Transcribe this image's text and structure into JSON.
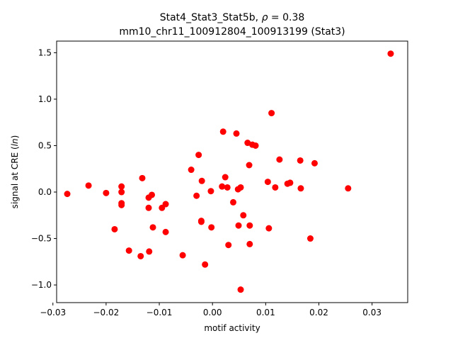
{
  "chart_data": {
    "type": "scatter",
    "title_line1": "Stat4_Stat3_Stat5b, ",
    "title_rho_symbol": "ρ",
    "title_rho_value": " = 0.38",
    "title_line2": "mm10_chr11_100912804_100913199 (Stat3)",
    "xlabel": "motif activity",
    "ylabel_prefix": "signal at CRE (",
    "ylabel_italic": "ln",
    "ylabel_suffix": ")",
    "xlim": [
      -0.0293,
      0.0367
    ],
    "ylim": [
      -1.19,
      1.625
    ],
    "xticks": [
      -0.03,
      -0.02,
      -0.01,
      0.0,
      0.01,
      0.02,
      0.03
    ],
    "xtick_labels": [
      "−0.03",
      "−0.02",
      "−0.01",
      "0.00",
      "0.01",
      "0.02",
      "0.03"
    ],
    "yticks": [
      -1.0,
      -0.5,
      0.0,
      0.5,
      1.0,
      1.5
    ],
    "ytick_labels": [
      "−1.0",
      "−0.5",
      "0.0",
      "0.5",
      "1.0",
      "1.5"
    ],
    "marker_color": "#ff0000",
    "grid": false,
    "points": [
      {
        "x": -0.0273,
        "y": -0.02
      },
      {
        "x": -0.0233,
        "y": 0.07
      },
      {
        "x": -0.02,
        "y": -0.01
      },
      {
        "x": -0.0184,
        "y": -0.4
      },
      {
        "x": -0.0171,
        "y": 0.06
      },
      {
        "x": -0.0171,
        "y": -0.12
      },
      {
        "x": -0.0171,
        "y": -0.14
      },
      {
        "x": -0.0171,
        "y": 0.0
      },
      {
        "x": -0.0157,
        "y": -0.63
      },
      {
        "x": -0.0135,
        "y": -0.69
      },
      {
        "x": -0.0132,
        "y": 0.15
      },
      {
        "x": -0.012,
        "y": -0.06
      },
      {
        "x": -0.012,
        "y": -0.17
      },
      {
        "x": -0.0119,
        "y": -0.64
      },
      {
        "x": -0.0114,
        "y": -0.03
      },
      {
        "x": -0.0112,
        "y": -0.38
      },
      {
        "x": -0.0095,
        "y": -0.17
      },
      {
        "x": -0.0088,
        "y": -0.13
      },
      {
        "x": -0.0088,
        "y": -0.43
      },
      {
        "x": -0.0056,
        "y": -0.68
      },
      {
        "x": -0.004,
        "y": 0.24
      },
      {
        "x": -0.003,
        "y": -0.04
      },
      {
        "x": -0.0026,
        "y": 0.4
      },
      {
        "x": -0.0021,
        "y": -0.32
      },
      {
        "x": -0.0021,
        "y": -0.31
      },
      {
        "x": -0.002,
        "y": 0.12
      },
      {
        "x": -0.0014,
        "y": -0.78
      },
      {
        "x": -0.0003,
        "y": 0.01
      },
      {
        "x": -0.0002,
        "y": -0.38
      },
      {
        "x": 0.0018,
        "y": 0.06
      },
      {
        "x": 0.002,
        "y": 0.65
      },
      {
        "x": 0.0024,
        "y": 0.16
      },
      {
        "x": 0.0028,
        "y": 0.05
      },
      {
        "x": 0.003,
        "y": -0.57
      },
      {
        "x": 0.0039,
        "y": -0.11
      },
      {
        "x": 0.0045,
        "y": 0.63
      },
      {
        "x": 0.0048,
        "y": 0.03
      },
      {
        "x": 0.0049,
        "y": -0.36
      },
      {
        "x": 0.0053,
        "y": 0.05
      },
      {
        "x": 0.0053,
        "y": -1.05
      },
      {
        "x": 0.0058,
        "y": -0.25
      },
      {
        "x": 0.0066,
        "y": 0.53
      },
      {
        "x": 0.0069,
        "y": 0.29
      },
      {
        "x": 0.007,
        "y": -0.36
      },
      {
        "x": 0.007,
        "y": -0.56
      },
      {
        "x": 0.0075,
        "y": 0.51
      },
      {
        "x": 0.0081,
        "y": 0.5
      },
      {
        "x": 0.0104,
        "y": 0.11
      },
      {
        "x": 0.0106,
        "y": -0.39
      },
      {
        "x": 0.0111,
        "y": 0.85
      },
      {
        "x": 0.0118,
        "y": 0.05
      },
      {
        "x": 0.0126,
        "y": 0.35
      },
      {
        "x": 0.0141,
        "y": 0.09
      },
      {
        "x": 0.0146,
        "y": 0.1
      },
      {
        "x": 0.0165,
        "y": 0.34
      },
      {
        "x": 0.0166,
        "y": 0.04
      },
      {
        "x": 0.0184,
        "y": -0.5
      },
      {
        "x": 0.0192,
        "y": 0.31
      },
      {
        "x": 0.0255,
        "y": 0.04
      },
      {
        "x": 0.0335,
        "y": 1.49
      }
    ]
  }
}
